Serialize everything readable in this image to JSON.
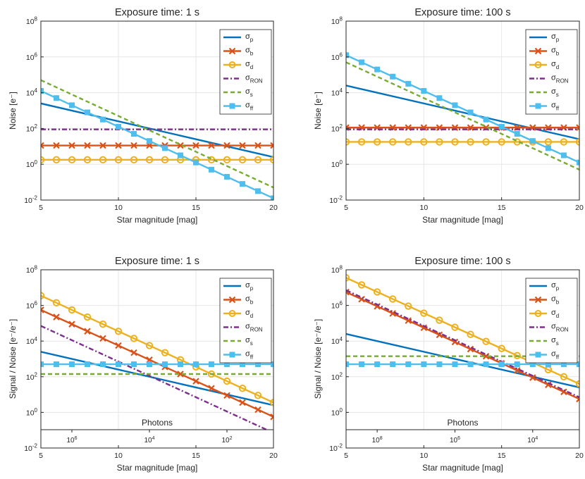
{
  "chart_data": [
    {
      "type": "line",
      "title": "Exposure time: 1 s",
      "xlabel": "Star magnitude [mag]",
      "ylabel": "Noise [e⁻]",
      "xlim": [
        5,
        20
      ],
      "ylim_log10": [
        -2,
        8
      ],
      "yscale": "log",
      "grid": true,
      "legend": "top-right",
      "x_ticks": [
        5,
        10,
        15,
        20
      ],
      "y_ticks_exp": [
        -2,
        0,
        2,
        4,
        6,
        8
      ],
      "series": [
        {
          "name": "σp",
          "sub": "p",
          "log10": {
            "type": "linear",
            "at5": 3.4,
            "at20": 0.4
          }
        },
        {
          "name": "σb",
          "sub": "b",
          "log10": {
            "type": "const",
            "value": 1.05
          }
        },
        {
          "name": "σd",
          "sub": "d",
          "log10": {
            "type": "const",
            "value": 0.25
          }
        },
        {
          "name": "σRON",
          "sub": "RON",
          "log10": {
            "type": "const",
            "value": 1.95
          }
        },
        {
          "name": "σs",
          "sub": "s",
          "log10": {
            "type": "linear",
            "at5": 4.7,
            "at20": -1.3
          }
        },
        {
          "name": "σff",
          "sub": "ff",
          "log10": {
            "type": "linear",
            "at5": 4.1,
            "at20": -1.9
          }
        }
      ]
    },
    {
      "type": "line",
      "title": "Exposure time: 100 s",
      "xlabel": "Star magnitude [mag]",
      "ylabel": "Noise [e⁻]",
      "xlim": [
        5,
        20
      ],
      "ylim_log10": [
        -2,
        8
      ],
      "yscale": "log",
      "grid": true,
      "legend": "top-right",
      "x_ticks": [
        5,
        10,
        15,
        20
      ],
      "y_ticks_exp": [
        -2,
        0,
        2,
        4,
        6,
        8
      ],
      "series": [
        {
          "name": "σp",
          "sub": "p",
          "log10": {
            "type": "linear",
            "at5": 4.4,
            "at20": 1.4
          }
        },
        {
          "name": "σb",
          "sub": "b",
          "log10": {
            "type": "const",
            "value": 2.05
          }
        },
        {
          "name": "σd",
          "sub": "d",
          "log10": {
            "type": "const",
            "value": 1.25
          }
        },
        {
          "name": "σRON",
          "sub": "RON",
          "log10": {
            "type": "const",
            "value": 1.95
          }
        },
        {
          "name": "σs",
          "sub": "s",
          "log10": {
            "type": "linear",
            "at5": 5.7,
            "at20": -0.3
          }
        },
        {
          "name": "σff",
          "sub": "ff",
          "log10": {
            "type": "linear",
            "at5": 6.1,
            "at20": 0.1
          }
        }
      ]
    },
    {
      "type": "line",
      "title": "Exposure time: 1 s",
      "xlabel": "Star magnitude [mag]",
      "ylabel": "Signal / Noise [e⁻/e⁻]",
      "xlim": [
        5,
        20
      ],
      "ylim_log10": [
        -2,
        8
      ],
      "yscale": "log",
      "grid": true,
      "legend": "top-right",
      "x_ticks": [
        5,
        10,
        15,
        20
      ],
      "y_ticks_exp": [
        -2,
        0,
        2,
        4,
        6,
        8
      ],
      "secondary_axis": {
        "label": "Photons",
        "tick_exps": [
          6,
          4,
          2
        ],
        "tick_mags": [
          7,
          12,
          17
        ]
      },
      "series": [
        {
          "name": "σp",
          "sub": "p",
          "log10": {
            "type": "linear",
            "at5": 3.4,
            "at20": 0.4
          }
        },
        {
          "name": "σb",
          "sub": "b",
          "log10": {
            "type": "linear",
            "at5": 5.75,
            "at20": -0.25
          }
        },
        {
          "name": "σd",
          "sub": "d",
          "log10": {
            "type": "linear",
            "at5": 6.55,
            "at20": 0.55
          }
        },
        {
          "name": "σRON",
          "sub": "RON",
          "log10": {
            "type": "linear",
            "at5": 4.85,
            "at20": -1.15
          }
        },
        {
          "name": "σs",
          "sub": "s",
          "log10": {
            "type": "const",
            "value": 2.15
          }
        },
        {
          "name": "σff",
          "sub": "ff",
          "log10": {
            "type": "const",
            "value": 2.7
          }
        }
      ]
    },
    {
      "type": "line",
      "title": "Exposure time: 100 s",
      "xlabel": "Star magnitude [mag]",
      "ylabel": "Signal / Noise [e⁻/e⁻]",
      "xlim": [
        5,
        20
      ],
      "ylim_log10": [
        -2,
        8
      ],
      "yscale": "log",
      "grid": true,
      "legend": "top-right",
      "x_ticks": [
        5,
        10,
        15,
        20
      ],
      "y_ticks_exp": [
        -2,
        0,
        2,
        4,
        6,
        8
      ],
      "secondary_axis": {
        "label": "Photons",
        "tick_exps": [
          8,
          6,
          4
        ],
        "tick_mags": [
          7,
          12,
          17
        ]
      },
      "series": [
        {
          "name": "σp",
          "sub": "p",
          "log10": {
            "type": "linear",
            "at5": 4.4,
            "at20": 1.4
          }
        },
        {
          "name": "σb",
          "sub": "b",
          "log10": {
            "type": "linear",
            "at5": 6.75,
            "at20": 0.75
          }
        },
        {
          "name": "σd",
          "sub": "d",
          "log10": {
            "type": "linear",
            "at5": 7.55,
            "at20": 1.6
          }
        },
        {
          "name": "σRON",
          "sub": "RON",
          "log10": {
            "type": "linear",
            "at5": 6.85,
            "at20": 0.85
          }
        },
        {
          "name": "σs",
          "sub": "s",
          "log10": {
            "type": "const",
            "value": 3.15
          }
        },
        {
          "name": "σff",
          "sub": "ff",
          "log10": {
            "type": "const",
            "value": 2.7
          }
        }
      ]
    }
  ],
  "styles": {
    "σp": {
      "color": "#0072BD",
      "dash": "",
      "marker": "none"
    },
    "σb": {
      "color": "#D95319",
      "dash": "",
      "marker": "x"
    },
    "σd": {
      "color": "#EDB120",
      "dash": "",
      "marker": "o"
    },
    "σRON": {
      "color": "#7E2F8E",
      "dash": "7,3,2,3",
      "marker": "none"
    },
    "σs": {
      "color": "#77AC30",
      "dash": "6,4",
      "marker": "none"
    },
    "σff": {
      "color": "#4DBEEE",
      "dash": "",
      "marker": "square"
    }
  },
  "colors": {
    "grid": "#e6e6e6",
    "axis": "#262626",
    "background": "#ffffff"
  }
}
